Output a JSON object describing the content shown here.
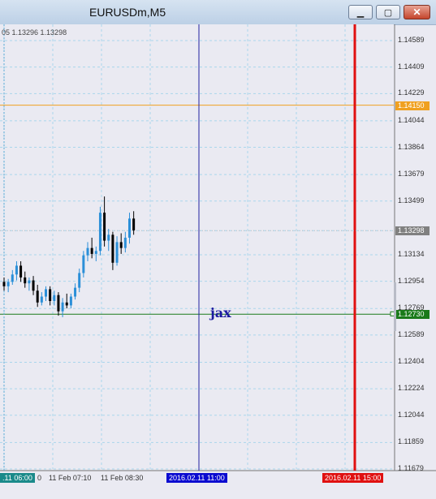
{
  "window": {
    "title": "EURUSDm,M5",
    "minimize_icon": "minimize-icon",
    "maximize_icon": "maximize-icon",
    "close_icon": "close-icon"
  },
  "header": {
    "ohlc_text": "05 1.13296 1.13298"
  },
  "y_axis": {
    "labels": [
      "1.14589",
      "1.14409",
      "1.14229",
      "1.14044",
      "1.13864",
      "1.13679",
      "1.13499",
      "1.13298",
      "1.13134",
      "1.12954",
      "1.12769",
      "1.12589",
      "1.12404",
      "1.12224",
      "1.12044",
      "1.11859",
      "1.11679"
    ]
  },
  "price_tags": {
    "orange_line": {
      "text": "1.14150",
      "color": "#f0a020"
    },
    "current_price": {
      "text": "1.13298",
      "color": "#808080"
    },
    "green_line": {
      "text": "1.12730",
      "color": "#1a7a1a"
    }
  },
  "x_axis": {
    "labels": [
      "0",
      "11 Feb 07:10",
      "11 Feb 08:30"
    ],
    "left_tag": {
      "text": ".11 06:00",
      "color": "#1a8a8a"
    },
    "blue_vline_tag": {
      "text": "2016.02.11 11:00",
      "color": "#0a0ad0"
    },
    "red_vline_tag": {
      "text": "2016.02.11 15:00",
      "color": "#e01010"
    }
  },
  "annotation": {
    "text": "jax"
  },
  "colors": {
    "background": "#eaeaf2",
    "grid": "#a9d6ec",
    "bull": "#2b8fd8",
    "bear": "#000000",
    "orange_line": "#f0a020",
    "green_line": "#1a7a1a",
    "blue_vline": "#2020a0",
    "red_vline": "#e01010"
  },
  "chart_data": {
    "type": "candlestick",
    "symbol": "EURUSDm",
    "timeframe": "M5",
    "ylim": [
      1.11679,
      1.14589
    ],
    "candles": [
      {
        "o": 1.1295,
        "h": 1.1298,
        "l": 1.1289,
        "c": 1.1292
      },
      {
        "o": 1.1292,
        "h": 1.1297,
        "l": 1.1288,
        "c": 1.1295
      },
      {
        "o": 1.1295,
        "h": 1.1303,
        "l": 1.1293,
        "c": 1.13
      },
      {
        "o": 1.13,
        "h": 1.1309,
        "l": 1.1296,
        "c": 1.1306
      },
      {
        "o": 1.1306,
        "h": 1.1309,
        "l": 1.1295,
        "c": 1.1298
      },
      {
        "o": 1.1298,
        "h": 1.1302,
        "l": 1.1291,
        "c": 1.1294
      },
      {
        "o": 1.1294,
        "h": 1.1298,
        "l": 1.1289,
        "c": 1.1296
      },
      {
        "o": 1.1296,
        "h": 1.1299,
        "l": 1.1286,
        "c": 1.1289
      },
      {
        "o": 1.1289,
        "h": 1.1293,
        "l": 1.1278,
        "c": 1.1281
      },
      {
        "o": 1.1281,
        "h": 1.1288,
        "l": 1.1279,
        "c": 1.1285
      },
      {
        "o": 1.1285,
        "h": 1.1292,
        "l": 1.1282,
        "c": 1.129
      },
      {
        "o": 1.129,
        "h": 1.1292,
        "l": 1.1279,
        "c": 1.1282
      },
      {
        "o": 1.1282,
        "h": 1.1289,
        "l": 1.1279,
        "c": 1.1286
      },
      {
        "o": 1.1286,
        "h": 1.1288,
        "l": 1.1272,
        "c": 1.1275
      },
      {
        "o": 1.1275,
        "h": 1.1284,
        "l": 1.1271,
        "c": 1.1281
      },
      {
        "o": 1.1281,
        "h": 1.1287,
        "l": 1.1277,
        "c": 1.1279
      },
      {
        "o": 1.1279,
        "h": 1.1287,
        "l": 1.1277,
        "c": 1.1285
      },
      {
        "o": 1.1285,
        "h": 1.1294,
        "l": 1.1283,
        "c": 1.1291
      },
      {
        "o": 1.1291,
        "h": 1.1304,
        "l": 1.1288,
        "c": 1.1301
      },
      {
        "o": 1.1301,
        "h": 1.1316,
        "l": 1.1298,
        "c": 1.1313
      },
      {
        "o": 1.1313,
        "h": 1.1322,
        "l": 1.1309,
        "c": 1.1318
      },
      {
        "o": 1.1318,
        "h": 1.1325,
        "l": 1.1311,
        "c": 1.1314
      },
      {
        "o": 1.1314,
        "h": 1.1319,
        "l": 1.1309,
        "c": 1.1316
      },
      {
        "o": 1.1316,
        "h": 1.1346,
        "l": 1.1313,
        "c": 1.1342
      },
      {
        "o": 1.1342,
        "h": 1.1353,
        "l": 1.1319,
        "c": 1.1323
      },
      {
        "o": 1.1323,
        "h": 1.1331,
        "l": 1.1316,
        "c": 1.1327
      },
      {
        "o": 1.1327,
        "h": 1.1329,
        "l": 1.1303,
        "c": 1.1308
      },
      {
        "o": 1.1308,
        "h": 1.1326,
        "l": 1.1306,
        "c": 1.1322
      },
      {
        "o": 1.1322,
        "h": 1.1328,
        "l": 1.1314,
        "c": 1.1318
      },
      {
        "o": 1.1318,
        "h": 1.1329,
        "l": 1.1315,
        "c": 1.1325
      },
      {
        "o": 1.1325,
        "h": 1.1342,
        "l": 1.1321,
        "c": 1.1338
      },
      {
        "o": 1.1338,
        "h": 1.1343,
        "l": 1.1327,
        "c": 1.133
      }
    ],
    "hlines": [
      1.1415,
      1.1273
    ],
    "vlines": [
      "2016.02.11 11:00",
      "2016.02.11 15:00"
    ],
    "grid": true
  }
}
